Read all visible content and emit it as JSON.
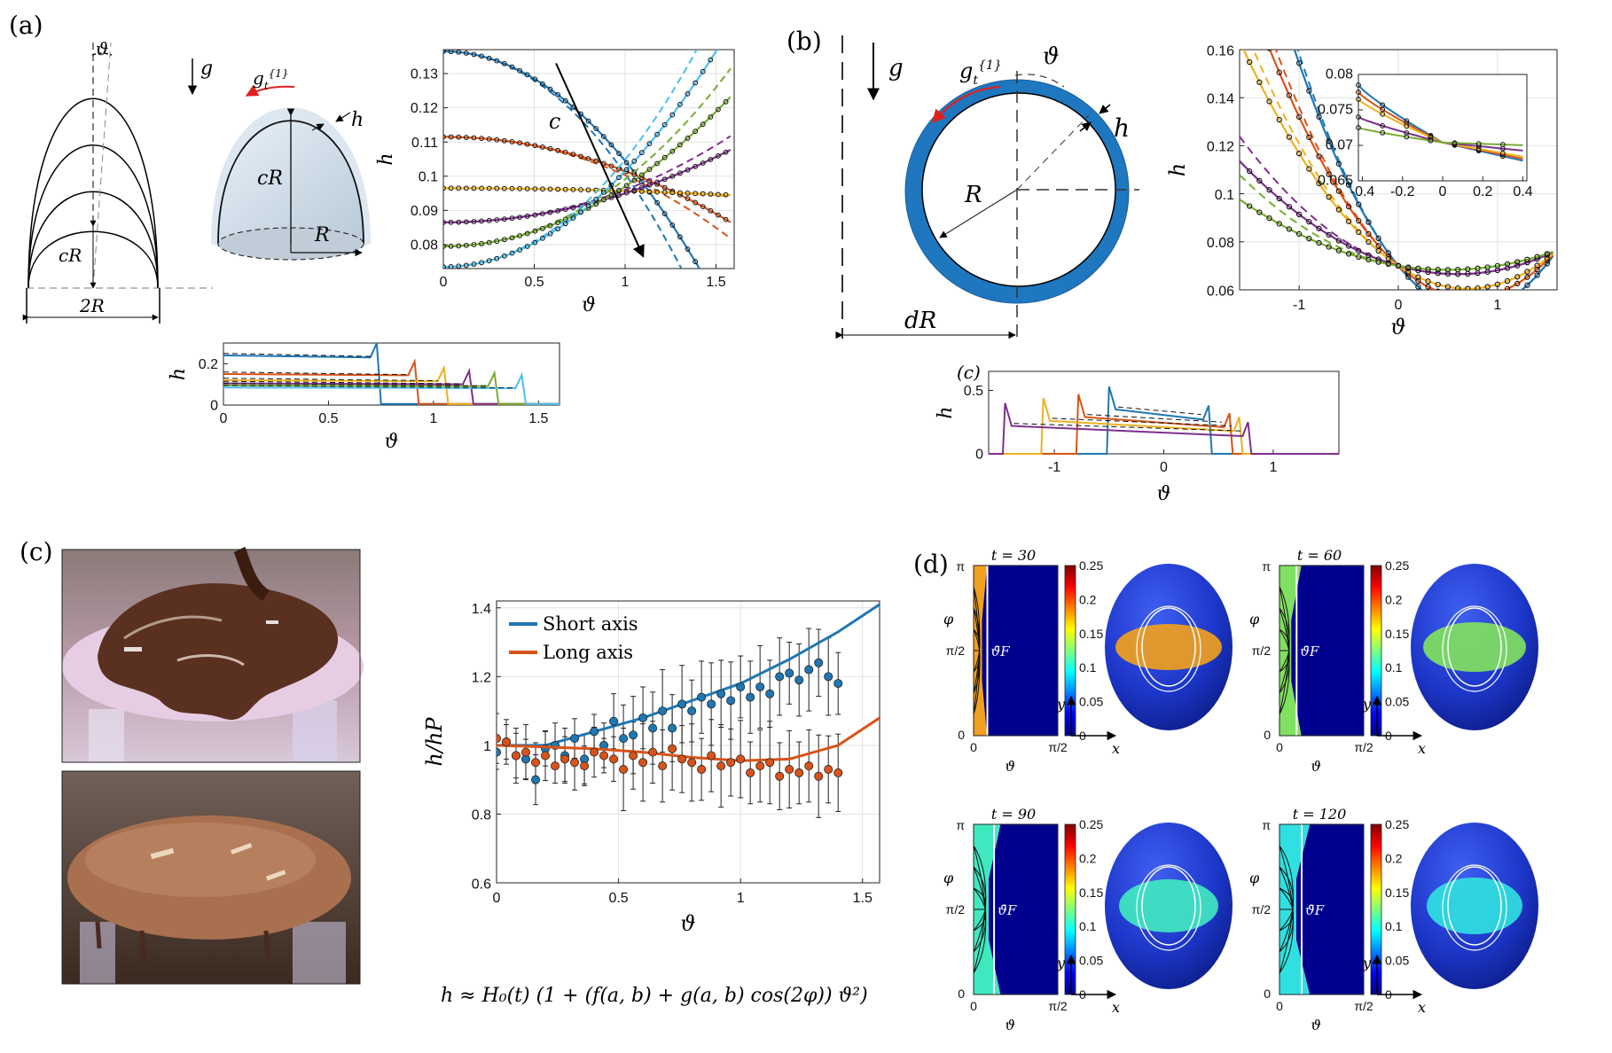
{
  "panels": {
    "a": {
      "label": "(a)",
      "sym_theta": "ϑ",
      "sym_g": "g",
      "sym_gt": "g",
      "sym_gt_sup": "{1}",
      "sym_gt_sub": "t",
      "sym_h": "h",
      "sym_cR": "cR",
      "sym_R": "R",
      "sym_2R": "2R",
      "sym_c": "c"
    },
    "b": {
      "label": "(b)",
      "sym_g": "g",
      "sym_gt": "g",
      "sym_gt_sup": "{1}",
      "sym_gt_sub": "t",
      "sym_theta": "ϑ",
      "sym_h": "h",
      "sym_R": "R",
      "sym_dR": "dR"
    },
    "c": {
      "label": "(c)",
      "formula": "h ≈ H₀(t) (1 + (f(a, b) + g(a, b) cos(2φ)) ϑ²)"
    },
    "d": {
      "label": "(d)"
    }
  },
  "colors": {
    "blue": "#1f77b4",
    "orange": "#d95319",
    "yellow": "#edb120",
    "purple": "#7e2f8e",
    "green": "#77ac30",
    "cyan": "#4dbeee",
    "shell": "#1f77c0"
  },
  "chart_data": [
    {
      "id": "a-main",
      "type": "line",
      "xlabel": "ϑ",
      "ylabel": "h",
      "xlim": [
        0,
        1.6
      ],
      "ylim": [
        0.073,
        0.137
      ],
      "xticks": [
        0,
        0.5,
        1,
        1.5
      ],
      "xtick_labels": [
        "0",
        "0.5",
        "1",
        "1.5"
      ],
      "yticks": [
        0.08,
        0.09,
        0.1,
        0.11,
        0.12,
        0.13
      ],
      "ytick_labels": [
        "0.08",
        "0.09",
        "0.1",
        "0.11",
        "0.12",
        "0.13"
      ],
      "grid": true,
      "annotation": "c",
      "series": [
        {
          "color": "blue",
          "h0": 0.1365,
          "k": -0.032
        },
        {
          "color": "orange",
          "h0": 0.1115,
          "k": -0.01
        },
        {
          "color": "yellow",
          "h0": 0.0965,
          "k": -0.0008
        },
        {
          "color": "purple",
          "h0": 0.0865,
          "k": 0.0085
        },
        {
          "color": "green",
          "h0": 0.0795,
          "k": 0.0175
        },
        {
          "color": "cyan",
          "h0": 0.0735,
          "k": 0.028
        }
      ]
    },
    {
      "id": "a-small",
      "type": "line",
      "xlabel": "ϑ",
      "ylabel": "h",
      "xlim": [
        0,
        1.6
      ],
      "ylim": [
        0,
        0.3
      ],
      "xticks": [
        0,
        0.5,
        1,
        1.5
      ],
      "xtick_labels": [
        "0",
        "0.5",
        "1",
        "1.5"
      ],
      "yticks": [
        0,
        0.2
      ],
      "ytick_labels": [
        "0",
        "0.2"
      ],
      "series": [
        {
          "color": "blue",
          "level": 0.24,
          "front": 0.75
        },
        {
          "color": "orange",
          "level": 0.15,
          "front": 0.93
        },
        {
          "color": "yellow",
          "level": 0.12,
          "front": 1.07
        },
        {
          "color": "purple",
          "level": 0.105,
          "front": 1.19
        },
        {
          "color": "green",
          "level": 0.095,
          "front": 1.31
        },
        {
          "color": "cyan",
          "level": 0.085,
          "front": 1.44
        }
      ]
    },
    {
      "id": "b-main",
      "type": "line",
      "xlabel": "ϑ",
      "ylabel": "h",
      "xlim": [
        -1.6,
        1.6
      ],
      "ylim": [
        0.06,
        0.16
      ],
      "xticks": [
        -1,
        0,
        1
      ],
      "xtick_labels": [
        "-1",
        "0",
        "1"
      ],
      "yticks": [
        0.06,
        0.08,
        0.1,
        0.12,
        0.14,
        0.16
      ],
      "ytick_labels": [
        "0.06",
        "0.08",
        "0.1",
        "0.12",
        "0.14",
        "0.16"
      ],
      "grid": true,
      "series": [
        {
          "color": "blue",
          "left": 0.157
        },
        {
          "color": "orange",
          "left": 0.135
        },
        {
          "color": "yellow",
          "left": 0.12
        },
        {
          "color": "purple",
          "left": 0.095
        },
        {
          "color": "green",
          "left": 0.087
        }
      ]
    },
    {
      "id": "b-inset",
      "type": "line",
      "xlim": [
        -0.42,
        0.42
      ],
      "ylim": [
        0.065,
        0.08
      ],
      "xticks": [
        -0.4,
        -0.2,
        0,
        0.2,
        0.4
      ],
      "xtick_labels": [
        "-0.4",
        "-0.2",
        "0",
        "0.2",
        "0.4"
      ],
      "yticks": [
        0.065,
        0.07,
        0.075,
        0.08
      ],
      "ytick_labels": [
        "0.065",
        "0.07",
        "0.075",
        "0.08"
      ],
      "series": [
        {
          "color": "blue",
          "y_left": 0.0785,
          "y_right": 0.0677
        },
        {
          "color": "orange",
          "y_left": 0.0775,
          "y_right": 0.068
        },
        {
          "color": "yellow",
          "y_left": 0.0765,
          "y_right": 0.0683
        },
        {
          "color": "purple",
          "y_left": 0.074,
          "y_right": 0.0692
        },
        {
          "color": "green",
          "y_left": 0.0725,
          "y_right": 0.07
        }
      ]
    },
    {
      "id": "b-small",
      "type": "line",
      "xlabel": "ϑ",
      "ylabel": "h",
      "corner_label": "(c)",
      "xlim": [
        -1.6,
        1.6
      ],
      "ylim": [
        0,
        0.65
      ],
      "xticks": [
        -1,
        0,
        1
      ],
      "xtick_labels": [
        "-1",
        "0",
        "1"
      ],
      "yticks": [
        0,
        0.5
      ],
      "ytick_labels": [
        "0",
        "0.5"
      ],
      "series": [
        {
          "color": "blue",
          "a": -0.52,
          "b": 0.44,
          "level": 0.33
        },
        {
          "color": "orange",
          "a": -0.8,
          "b": 0.63,
          "level": 0.27
        },
        {
          "color": "yellow",
          "a": -1.12,
          "b": 0.72,
          "level": 0.24
        },
        {
          "color": "purple",
          "a": -1.47,
          "b": 0.8,
          "level": 0.2
        }
      ]
    },
    {
      "id": "c-main",
      "type": "scatter",
      "xlabel": "ϑ",
      "ylabel": "h/hP",
      "xlim": [
        0,
        1.57
      ],
      "ylim": [
        0.6,
        1.42
      ],
      "xticks": [
        0,
        0.5,
        1,
        1.5
      ],
      "xtick_labels": [
        "0",
        "0.5",
        "1",
        "1.5"
      ],
      "yticks": [
        0.6,
        0.8,
        1.0,
        1.2,
        1.4
      ],
      "ytick_labels": [
        "0.6",
        "0.8",
        "1",
        "1.2",
        "1.4"
      ],
      "grid": true,
      "legend_position": "top-left",
      "series": [
        {
          "name": "Short axis",
          "color": "blue",
          "fit": [
            [
              0,
              1.0
            ],
            [
              0.2,
              1.0
            ],
            [
              0.4,
              1.04
            ],
            [
              0.6,
              1.08
            ],
            [
              0.8,
              1.13
            ],
            [
              1.0,
              1.18
            ],
            [
              1.2,
              1.25
            ],
            [
              1.4,
              1.33
            ],
            [
              1.57,
              1.41
            ]
          ],
          "x": [
            0.0,
            0.04,
            0.08,
            0.12,
            0.16,
            0.2,
            0.24,
            0.28,
            0.32,
            0.36,
            0.4,
            0.44,
            0.48,
            0.52,
            0.56,
            0.6,
            0.64,
            0.68,
            0.72,
            0.76,
            0.8,
            0.84,
            0.88,
            0.92,
            0.96,
            1.0,
            1.04,
            1.08,
            1.12,
            1.16,
            1.2,
            1.24,
            1.28,
            1.32,
            1.36,
            1.4
          ],
          "y": [
            0.98,
            1.01,
            0.97,
            0.96,
            0.9,
            0.99,
            1.0,
            0.97,
            1.02,
            0.96,
            1.04,
            1.0,
            1.07,
            1.02,
            1.03,
            1.08,
            1.05,
            1.1,
            1.05,
            1.12,
            1.1,
            1.14,
            1.12,
            1.15,
            1.13,
            1.17,
            1.14,
            1.17,
            1.15,
            1.2,
            1.21,
            1.19,
            1.22,
            1.24,
            1.2,
            1.18
          ]
        },
        {
          "name": "Long axis",
          "color": "orange",
          "fit": [
            [
              0,
              1.0
            ],
            [
              0.2,
              0.995
            ],
            [
              0.4,
              0.99
            ],
            [
              0.6,
              0.98
            ],
            [
              0.8,
              0.965
            ],
            [
              1.0,
              0.955
            ],
            [
              1.2,
              0.96
            ],
            [
              1.4,
              1.0
            ],
            [
              1.57,
              1.08
            ]
          ],
          "x": [
            0.0,
            0.04,
            0.08,
            0.12,
            0.16,
            0.2,
            0.24,
            0.28,
            0.32,
            0.36,
            0.4,
            0.44,
            0.48,
            0.52,
            0.56,
            0.6,
            0.64,
            0.68,
            0.72,
            0.76,
            0.8,
            0.84,
            0.88,
            0.92,
            0.96,
            1.0,
            1.04,
            1.08,
            1.12,
            1.16,
            1.2,
            1.24,
            1.28,
            1.32,
            1.36,
            1.4
          ],
          "y": [
            1.02,
            1.01,
            0.97,
            0.98,
            0.95,
            0.97,
            0.94,
            0.96,
            0.95,
            0.94,
            0.98,
            0.97,
            0.96,
            0.93,
            0.97,
            0.95,
            0.98,
            0.94,
            0.99,
            0.96,
            0.95,
            0.93,
            0.97,
            0.94,
            0.95,
            0.96,
            0.92,
            0.94,
            0.95,
            0.91,
            0.93,
            0.92,
            0.94,
            0.91,
            0.93,
            0.92
          ]
        }
      ]
    },
    {
      "id": "d-maps",
      "type": "heatmap",
      "colorbar_ticks": [
        "0.25",
        "0.2",
        "0.15",
        "0.1",
        "0.05",
        "0"
      ],
      "xlabel": "ϑ",
      "ylabel": "φ",
      "y_tick_labels": [
        "π",
        "π/2",
        "0"
      ],
      "x_tick_labels": [
        "0",
        "π/2"
      ],
      "front_label": "ϑ̄F",
      "axis_labels_3d": {
        "x": "x",
        "y": "y"
      },
      "subplots": [
        {
          "title": "t = 30",
          "film_color": "#f0a020",
          "film_level": 0.18,
          "front_top": 0.16,
          "front_mid": 0.1
        },
        {
          "title": "t = 60",
          "film_color": "#80e060",
          "film_level": 0.12,
          "front_top": 0.26,
          "front_mid": 0.14
        },
        {
          "title": "t = 90",
          "film_color": "#40e8c0",
          "film_level": 0.09,
          "front_top": 0.32,
          "front_mid": 0.18
        },
        {
          "title": "t = 120",
          "film_color": "#30e0e0",
          "film_level": 0.08,
          "front_top": 0.36,
          "front_mid": 0.2
        }
      ]
    }
  ]
}
